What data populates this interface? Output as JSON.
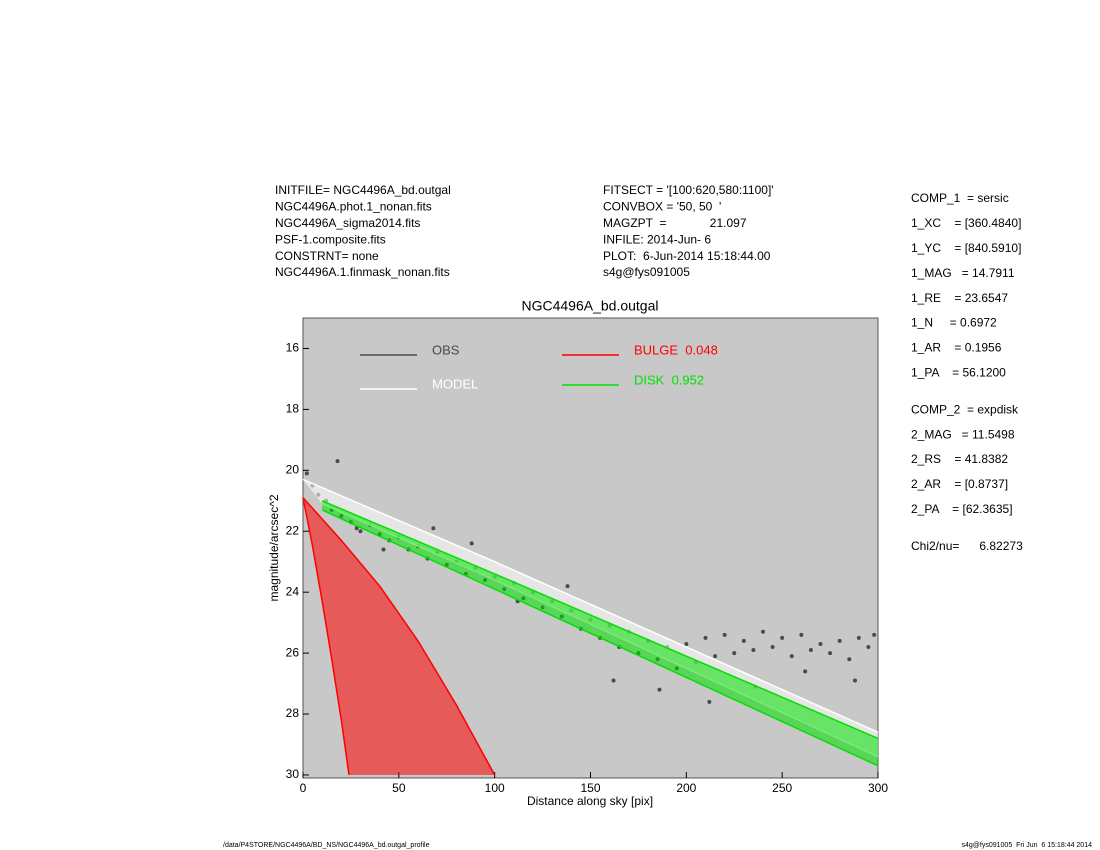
{
  "info": {
    "left": [
      "INITFILE= NGC4496A_bd.outgal",
      "NGC4496A.phot.1_nonan.fits",
      "NGC4496A_sigma2014.fits",
      "PSF-1.composite.fits",
      "CONSTRNT= none",
      "NGC4496A.1.finmask_nonan.fits"
    ],
    "middle": [
      "FITSECT = '[100:620,580:1100]'",
      "CONVBOX = '50, 50  '",
      "MAGZPT  =             21.097",
      "INFILE: 2014-Jun- 6",
      "PLOT:  6-Jun-2014 15:18:44.00",
      "s4g@fys091005"
    ],
    "params": [
      [
        "COMP_1  = sersic",
        "1_XC    = [360.4840]",
        "1_YC    = [840.5910]",
        "1_MAG   = 14.7911",
        "1_RE    = 23.6547",
        "1_N     = 0.6972",
        "1_AR    = 0.1956",
        "1_PA    = 56.1200"
      ],
      [
        "COMP_2  = expdisk",
        "2_MAG   = 11.5498",
        "2_RS    = 41.8382",
        "2_AR    = [0.8737]",
        "2_PA    = [62.3635]"
      ],
      [
        "Chi2/nu=      6.82273"
      ]
    ]
  },
  "footer": {
    "left": "/data/P4STORE/NGC4496A/BD_NS/NGC4496A_bd.outgal_profile",
    "right": "s4g@fys091005  Fri Jun  6 15:18:44 2014"
  },
  "chart_data": {
    "type": "scatter",
    "title": "NGC4496A_bd.outgal",
    "x_label": "Distance along sky [pix]",
    "y_label": "magnitude/arcsec^2",
    "xlim": [
      0,
      300
    ],
    "ylim": [
      30.1,
      15
    ],
    "xticks": [
      0,
      50,
      100,
      150,
      200,
      250,
      300
    ],
    "yticks": [
      16,
      18,
      20,
      22,
      24,
      26,
      28,
      30
    ],
    "background": "#c8c8c8",
    "points": {
      "name": "OBS",
      "color": "#4a4a4a",
      "x": [
        2,
        5,
        8,
        12,
        15,
        20,
        25,
        28,
        30,
        35,
        40,
        45,
        50,
        55,
        60,
        65,
        70,
        75,
        80,
        85,
        90,
        95,
        100,
        105,
        110,
        115,
        120,
        125,
        130,
        135,
        140,
        145,
        150,
        155,
        160,
        165,
        170,
        175,
        180,
        185,
        190,
        195,
        200,
        205,
        210,
        215,
        220,
        225,
        230,
        235,
        240,
        245,
        250,
        255,
        260,
        265,
        270,
        275,
        280,
        285,
        290,
        295,
        298,
        18,
        42,
        68,
        88,
        112,
        138,
        162,
        186,
        212,
        236,
        262,
        288
      ],
      "values": [
        20.1,
        20.5,
        20.8,
        21.0,
        21.3,
        21.5,
        21.7,
        21.9,
        22.0,
        21.8,
        22.1,
        22.3,
        22.2,
        22.6,
        22.5,
        22.9,
        22.7,
        23.1,
        23.0,
        23.4,
        23.2,
        23.6,
        23.5,
        23.9,
        23.7,
        24.2,
        24.0,
        24.5,
        24.3,
        24.8,
        24.6,
        25.2,
        24.9,
        25.5,
        25.1,
        25.8,
        25.3,
        26.0,
        25.6,
        26.2,
        25.8,
        26.5,
        25.7,
        26.3,
        25.5,
        26.1,
        25.4,
        26.0,
        25.6,
        25.9,
        25.3,
        25.8,
        25.5,
        26.1,
        25.4,
        25.9,
        25.7,
        26.0,
        25.6,
        26.2,
        25.5,
        25.8,
        25.4,
        19.7,
        22.6,
        21.9,
        22.4,
        24.3,
        23.8,
        26.9,
        27.2,
        27.6,
        27.1,
        26.6,
        26.9
      ]
    },
    "bands": [
      {
        "name": "MODEL",
        "color": "#ffffff",
        "edges": [
          {
            "x": [
              0,
              100,
              200,
              300
            ],
            "values": [
              20.3,
              23.0,
              25.8,
              28.6
            ]
          },
          {
            "x": [
              10,
              100,
              200,
              300
            ],
            "values": [
              21.1,
              23.6,
              26.5,
              29.4
            ]
          }
        ]
      },
      {
        "name": "BULGE  0.048",
        "color": "#ff0000",
        "edges": [
          {
            "x": [
              0,
              5,
              10,
              15,
              20,
              24
            ],
            "values": [
              20.9,
              22.5,
              24.3,
              26.2,
              28.2,
              30
            ]
          },
          {
            "x": [
              0,
              20,
              40,
              60,
              80,
              100
            ],
            "values": [
              20.9,
              22.3,
              23.8,
              25.6,
              27.7,
              30
            ]
          }
        ]
      },
      {
        "name": "DISK  0.952",
        "color": "#00e000",
        "edges": [
          {
            "x": [
              10,
              100,
              200,
              300
            ],
            "values": [
              21.0,
              23.4,
              26.1,
              28.8
            ]
          },
          {
            "x": [
              10,
              100,
              200,
              300
            ],
            "values": [
              21.3,
              23.9,
              26.8,
              29.7
            ]
          }
        ]
      }
    ]
  }
}
